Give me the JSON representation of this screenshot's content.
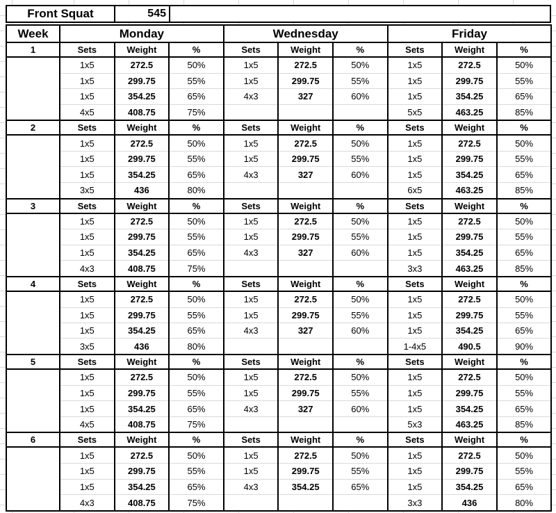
{
  "title_row": {
    "exercise": "Front Squat",
    "max": "545"
  },
  "header": {
    "week_label": "Week",
    "days": [
      "Monday",
      "Wednesday",
      "Friday"
    ],
    "subheaders": [
      "Sets",
      "Weight",
      "%"
    ]
  },
  "colors": {
    "border": "#000000",
    "gridline": "#d9d9d9",
    "text": "#000000",
    "background": "#ffffff"
  },
  "weeks": [
    {
      "number": "1",
      "days": [
        {
          "rows": [
            [
              "1x5",
              "272.5",
              "50%"
            ],
            [
              "1x5",
              "299.75",
              "55%"
            ],
            [
              "1x5",
              "354.25",
              "65%"
            ],
            [
              "4x5",
              "408.75",
              "75%"
            ]
          ]
        },
        {
          "rows": [
            [
              "1x5",
              "272.5",
              "50%"
            ],
            [
              "1x5",
              "299.75",
              "55%"
            ],
            [
              "4x3",
              "327",
              "60%"
            ],
            [
              "",
              "",
              ""
            ]
          ]
        },
        {
          "rows": [
            [
              "1x5",
              "272.5",
              "50%"
            ],
            [
              "1x5",
              "299.75",
              "55%"
            ],
            [
              "1x5",
              "354.25",
              "65%"
            ],
            [
              "5x5",
              "463.25",
              "85%"
            ]
          ]
        }
      ]
    },
    {
      "number": "2",
      "days": [
        {
          "rows": [
            [
              "1x5",
              "272.5",
              "50%"
            ],
            [
              "1x5",
              "299.75",
              "55%"
            ],
            [
              "1x5",
              "354.25",
              "65%"
            ],
            [
              "3x5",
              "436",
              "80%"
            ]
          ]
        },
        {
          "rows": [
            [
              "1x5",
              "272.5",
              "50%"
            ],
            [
              "1x5",
              "299.75",
              "55%"
            ],
            [
              "4x3",
              "327",
              "60%"
            ],
            [
              "",
              "",
              ""
            ]
          ]
        },
        {
          "rows": [
            [
              "1x5",
              "272.5",
              "50%"
            ],
            [
              "1x5",
              "299.75",
              "55%"
            ],
            [
              "1x5",
              "354.25",
              "65%"
            ],
            [
              "6x5",
              "463.25",
              "85%"
            ]
          ]
        }
      ]
    },
    {
      "number": "3",
      "days": [
        {
          "rows": [
            [
              "1x5",
              "272.5",
              "50%"
            ],
            [
              "1x5",
              "299.75",
              "55%"
            ],
            [
              "1x5",
              "354.25",
              "65%"
            ],
            [
              "4x3",
              "408.75",
              "75%"
            ]
          ]
        },
        {
          "rows": [
            [
              "1x5",
              "272.5",
              "50%"
            ],
            [
              "1x5",
              "299.75",
              "55%"
            ],
            [
              "4x3",
              "327",
              "60%"
            ],
            [
              "",
              "",
              ""
            ]
          ]
        },
        {
          "rows": [
            [
              "1x5",
              "272.5",
              "50%"
            ],
            [
              "1x5",
              "299.75",
              "55%"
            ],
            [
              "1x5",
              "354.25",
              "65%"
            ],
            [
              "3x3",
              "463.25",
              "85%"
            ]
          ]
        }
      ]
    },
    {
      "number": "4",
      "days": [
        {
          "rows": [
            [
              "1x5",
              "272.5",
              "50%"
            ],
            [
              "1x5",
              "299.75",
              "55%"
            ],
            [
              "1x5",
              "354.25",
              "65%"
            ],
            [
              "3x5",
              "436",
              "80%"
            ]
          ]
        },
        {
          "rows": [
            [
              "1x5",
              "272.5",
              "50%"
            ],
            [
              "1x5",
              "299.75",
              "55%"
            ],
            [
              "4x3",
              "327",
              "60%"
            ],
            [
              "",
              "",
              ""
            ]
          ]
        },
        {
          "rows": [
            [
              "1x5",
              "272.5",
              "50%"
            ],
            [
              "1x5",
              "299.75",
              "55%"
            ],
            [
              "1x5",
              "354.25",
              "65%"
            ],
            [
              "1-4x5",
              "490.5",
              "90%"
            ]
          ]
        }
      ]
    },
    {
      "number": "5",
      "days": [
        {
          "rows": [
            [
              "1x5",
              "272.5",
              "50%"
            ],
            [
              "1x5",
              "299.75",
              "55%"
            ],
            [
              "1x5",
              "354.25",
              "65%"
            ],
            [
              "4x5",
              "408.75",
              "75%"
            ]
          ]
        },
        {
          "rows": [
            [
              "1x5",
              "272.5",
              "50%"
            ],
            [
              "1x5",
              "299.75",
              "55%"
            ],
            [
              "4x3",
              "327",
              "60%"
            ],
            [
              "",
              "",
              ""
            ]
          ]
        },
        {
          "rows": [
            [
              "1x5",
              "272.5",
              "50%"
            ],
            [
              "1x5",
              "299.75",
              "55%"
            ],
            [
              "1x5",
              "354.25",
              "65%"
            ],
            [
              "5x3",
              "463.25",
              "85%"
            ]
          ]
        }
      ]
    },
    {
      "number": "6",
      "days": [
        {
          "rows": [
            [
              "1x5",
              "272.5",
              "50%"
            ],
            [
              "1x5",
              "299.75",
              "55%"
            ],
            [
              "1x5",
              "354.25",
              "65%"
            ],
            [
              "4x3",
              "408.75",
              "75%"
            ]
          ]
        },
        {
          "rows": [
            [
              "1x5",
              "272.5",
              "50%"
            ],
            [
              "1x5",
              "299.75",
              "55%"
            ],
            [
              "4x3",
              "354.25",
              "65%"
            ],
            [
              "",
              "",
              ""
            ]
          ]
        },
        {
          "rows": [
            [
              "1x5",
              "272.5",
              "50%"
            ],
            [
              "1x5",
              "299.75",
              "55%"
            ],
            [
              "1x5",
              "354.25",
              "65%"
            ],
            [
              "3x3",
              "436",
              "80%"
            ]
          ]
        }
      ]
    }
  ]
}
